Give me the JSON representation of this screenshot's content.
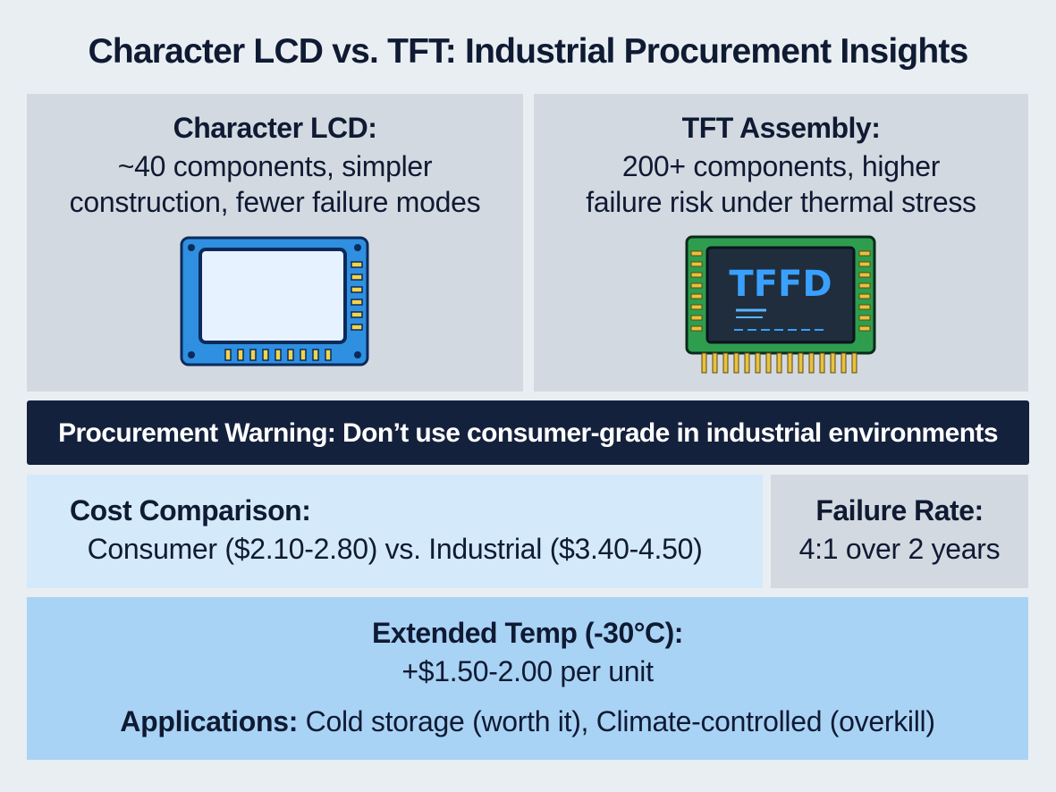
{
  "title": "Character LCD vs. TFT: Industrial Procurement Insights",
  "panels": [
    {
      "heading": "Character LCD:",
      "lines": [
        "~40 components, simpler",
        "construction, fewer failure modes"
      ]
    },
    {
      "heading": "TFT Assembly:",
      "lines": [
        "200+ components, higher",
        "failure risk under thermal stress"
      ],
      "icon_label": "TFFD"
    }
  ],
  "warning": "Procurement Warning: Don’t use consumer-grade in industrial environments",
  "cost": {
    "heading": "Cost Comparison:",
    "text": "Consumer ($2.10-2.80) vs. Industrial ($3.40-4.50)"
  },
  "failure": {
    "heading": "Failure Rate:",
    "text": "4:1 over 2 years"
  },
  "temp": {
    "heading": "Extended Temp (-30°C):",
    "text": "+$1.50-2.00 per unit",
    "applications_label": "Applications:",
    "applications_text": "Cold storage (worth it), Climate-controlled (overkill)"
  }
}
